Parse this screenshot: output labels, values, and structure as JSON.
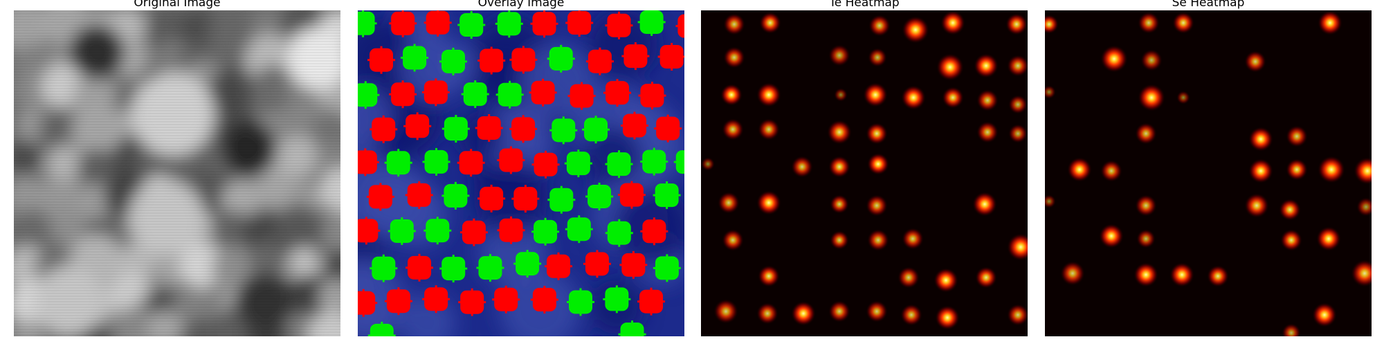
{
  "panels": [
    {
      "id": "original",
      "title": "Original Image"
    },
    {
      "id": "overlay",
      "title": "Overlay Image"
    },
    {
      "id": "te",
      "title": "Te Heatmap"
    },
    {
      "id": "se",
      "title": "Se Heatmap"
    }
  ],
  "colors": {
    "red_marker": "#ff0000",
    "green_marker": "#00ee00",
    "heatmap_bg": "#0a0000",
    "overlay_bg": "#1c2a8c"
  },
  "icons": {
    "marker": "rounded-square-marker",
    "heat_spot": "radial-blob"
  }
}
